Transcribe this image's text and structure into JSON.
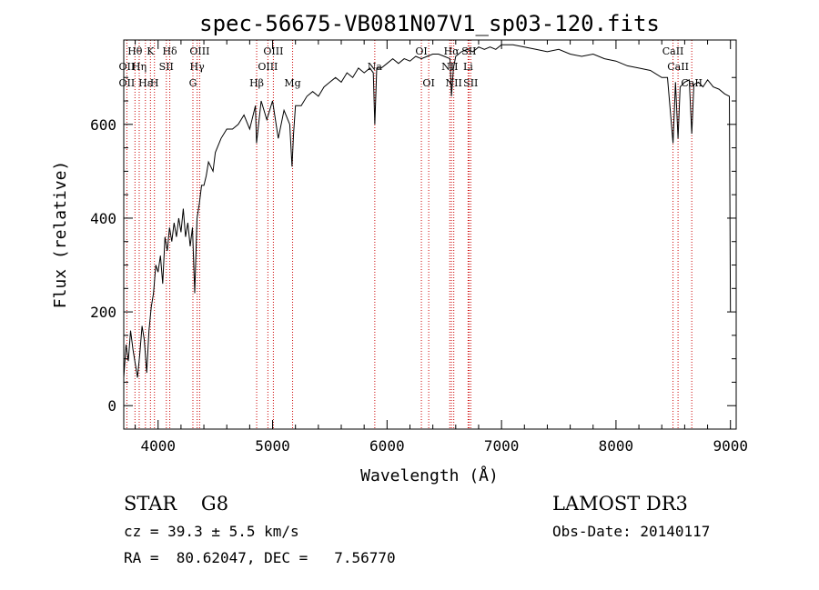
{
  "chart_data": {
    "type": "line",
    "title": "spec-56675-VB081N07V1_sp03-120.fits",
    "xlabel": "Wavelength (Å)",
    "ylabel": "Flux (relative)",
    "xlim": [
      3700,
      9050
    ],
    "ylim": [
      -50,
      780
    ],
    "xticks": [
      4000,
      5000,
      6000,
      7000,
      8000,
      9000
    ],
    "yticks": [
      0,
      200,
      400,
      600
    ],
    "grid": false,
    "series": [
      {
        "color": "#000000",
        "x": [
          3700,
          3720,
          3740,
          3760,
          3780,
          3800,
          3820,
          3840,
          3860,
          3880,
          3900,
          3920,
          3940,
          3960,
          3980,
          4000,
          4020,
          4040,
          4060,
          4080,
          4100,
          4120,
          4140,
          4160,
          4180,
          4200,
          4220,
          4240,
          4260,
          4280,
          4300,
          4320,
          4340,
          4360,
          4380,
          4400,
          4420,
          4440,
          4460,
          4480,
          4500,
          4550,
          4600,
          4650,
          4700,
          4750,
          4800,
          4850,
          4860,
          4900,
          4950,
          5000,
          5050,
          5100,
          5150,
          5170,
          5183,
          5200,
          5250,
          5300,
          5350,
          5400,
          5450,
          5500,
          5550,
          5600,
          5650,
          5700,
          5750,
          5800,
          5850,
          5880,
          5893,
          5910,
          5950,
          6000,
          6050,
          6100,
          6150,
          6200,
          6250,
          6300,
          6350,
          6400,
          6450,
          6500,
          6550,
          6563,
          6580,
          6600,
          6650,
          6700,
          6750,
          6800,
          6850,
          6900,
          6950,
          7000,
          7100,
          7200,
          7300,
          7400,
          7500,
          7600,
          7700,
          7800,
          7900,
          8000,
          8100,
          8200,
          8300,
          8400,
          8450,
          8498,
          8520,
          8542,
          8560,
          8600,
          8640,
          8662,
          8680,
          8720,
          8760,
          8800,
          8850,
          8900,
          8950,
          8990,
          9000
        ],
        "y": [
          60,
          130,
          95,
          160,
          120,
          90,
          60,
          110,
          170,
          140,
          70,
          160,
          210,
          240,
          300,
          285,
          320,
          260,
          360,
          330,
          380,
          350,
          390,
          360,
          400,
          370,
          420,
          360,
          390,
          340,
          380,
          240,
          400,
          430,
          470,
          470,
          490,
          520,
          510,
          500,
          540,
          570,
          590,
          590,
          600,
          620,
          590,
          640,
          560,
          650,
          610,
          650,
          570,
          630,
          600,
          510,
          580,
          640,
          640,
          660,
          670,
          660,
          680,
          690,
          700,
          690,
          710,
          700,
          720,
          710,
          720,
          710,
          600,
          720,
          720,
          730,
          740,
          730,
          740,
          735,
          745,
          740,
          745,
          750,
          750,
          745,
          740,
          660,
          720,
          745,
          755,
          760,
          755,
          765,
          760,
          765,
          760,
          770,
          770,
          765,
          760,
          755,
          760,
          750,
          745,
          750,
          740,
          735,
          725,
          720,
          715,
          700,
          700,
          560,
          690,
          570,
          680,
          690,
          695,
          580,
          685,
          690,
          680,
          695,
          680,
          675,
          665,
          660,
          200
        ]
      }
    ],
    "line_markers": [
      {
        "label": "Hθ",
        "x": 3798,
        "row": 1
      },
      {
        "label": "OII",
        "x": 3727,
        "row": 2
      },
      {
        "label": "OII",
        "x": 3727,
        "row": 3
      },
      {
        "label": "Hη",
        "x": 3835,
        "row": 2
      },
      {
        "label": "Hε",
        "x": 3889,
        "row": 3
      },
      {
        "label": "K",
        "x": 3933,
        "row": 1
      },
      {
        "label": "H",
        "x": 3968,
        "row": 3
      },
      {
        "label": "SII",
        "x": 4072,
        "row": 2
      },
      {
        "label": "Hδ",
        "x": 4102,
        "row": 1
      },
      {
        "label": "OIII",
        "x": 4363,
        "row": 1
      },
      {
        "label": "Hγ",
        "x": 4341,
        "row": 2
      },
      {
        "label": "G",
        "x": 4304,
        "row": 3
      },
      {
        "label": "Hβ",
        "x": 4861,
        "row": 3
      },
      {
        "label": "OIII",
        "x": 4959,
        "row": 2
      },
      {
        "label": "OIII",
        "x": 5007,
        "row": 1
      },
      {
        "label": "Mg",
        "x": 5175,
        "row": 3
      },
      {
        "label": "Na",
        "x": 5893,
        "row": 2
      },
      {
        "label": "OI",
        "x": 6300,
        "row": 1
      },
      {
        "label": "OI",
        "x": 6364,
        "row": 3
      },
      {
        "label": "NII",
        "x": 6548,
        "row": 2
      },
      {
        "label": "NII",
        "x": 6583,
        "row": 3
      },
      {
        "label": "Hα",
        "x": 6563,
        "row": 1
      },
      {
        "label": "SII",
        "x": 6716,
        "row": 1
      },
      {
        "label": "Li",
        "x": 6708,
        "row": 2
      },
      {
        "label": "SII",
        "x": 6731,
        "row": 3
      },
      {
        "label": "CaII",
        "x": 8498,
        "row": 1
      },
      {
        "label": "CaII",
        "x": 8542,
        "row": 2
      },
      {
        "label": "CaII",
        "x": 8662,
        "row": 3
      }
    ],
    "marker_color": "#cc0000"
  },
  "info": {
    "class_line": "STAR    G8",
    "cz_line": "cz = 39.3 ± 5.5 km/s",
    "coord_line": "RA =  80.62047, DEC =   7.56770",
    "survey": "LAMOST DR3",
    "obs_date": "Obs-Date: 20140117"
  }
}
